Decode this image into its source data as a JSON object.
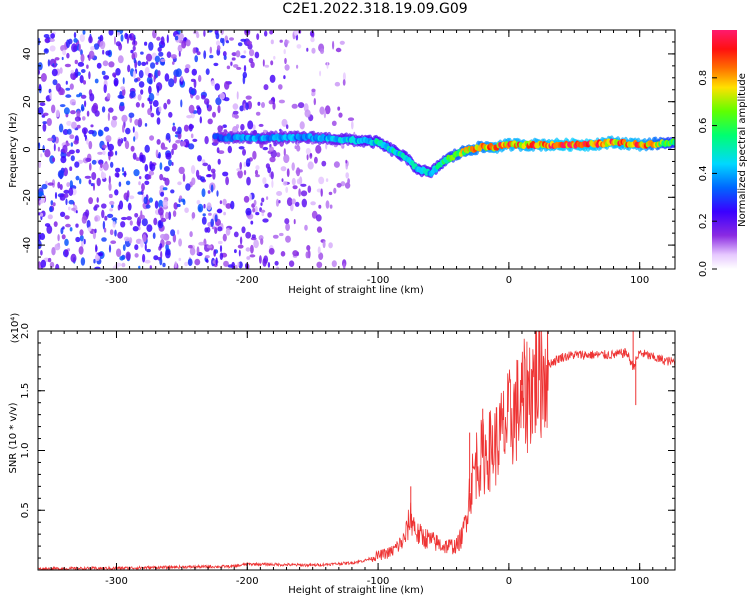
{
  "title": "C2E1.2022.318.19.09.G09",
  "colors": {
    "axis": "#000000",
    "snr_line": "#ee3333",
    "ridge_low": "#7a1cff",
    "ridge_high": "#ff2020",
    "scatter": "#8a2be2"
  },
  "chart_data": [
    {
      "type": "heatmap",
      "title": "",
      "xlabel": "Height of straight line (km)",
      "ylabel": "Frequency (Hz)",
      "xlim": [
        -360,
        127
      ],
      "ylim": [
        -50,
        50
      ],
      "xticks": [
        -300,
        -200,
        -100,
        0,
        100
      ],
      "yticks": [
        -40,
        -20,
        0,
        20,
        40
      ],
      "colorbar": {
        "label": "Normalized spectral amplitude",
        "range": [
          0.0,
          1.0
        ],
        "ticks": [
          "0.0",
          "0.2",
          "0.4",
          "0.6",
          "0.8"
        ],
        "colormap": "rainbow (white-purple-blue-cyan-green-yellow-red-magenta)"
      },
      "ridge": {
        "x": [
          -360,
          -300,
          -250,
          -220,
          -200,
          -150,
          -120,
          -100,
          -90,
          -80,
          -70,
          -60,
          -50,
          -40,
          -30,
          -20,
          -10,
          0,
          20,
          40,
          60,
          80,
          100,
          127
        ],
        "frequency": [
          5,
          5,
          5,
          5,
          5,
          5,
          4,
          3,
          0,
          -3,
          -8,
          -10,
          -5,
          -2,
          0,
          1,
          1,
          2,
          2,
          2,
          2,
          3,
          2,
          3
        ],
        "amplitude": [
          0.0,
          0.0,
          0.0,
          0.35,
          0.4,
          0.4,
          0.45,
          0.5,
          0.5,
          0.5,
          0.5,
          0.45,
          0.6,
          0.7,
          0.8,
          0.8,
          0.9,
          0.9,
          0.9,
          0.95,
          0.95,
          0.9,
          0.9,
          0.6
        ]
      },
      "noise_region": {
        "x_range": [
          -360,
          -110
        ],
        "frequency_range": [
          -50,
          50
        ],
        "amplitude_range": [
          0.05,
          0.25
        ]
      }
    },
    {
      "type": "line",
      "title": "",
      "xlabel": "Height of straight line (km)",
      "ylabel": "SNR (10 * v/v)",
      "y_multiplier": "(x10⁴)",
      "xlim": [
        -360,
        127
      ],
      "ylim": [
        0.0,
        2.0
      ],
      "xticks": [
        -300,
        -200,
        -100,
        0,
        100
      ],
      "yticks": [
        0.5,
        1.0,
        1.5,
        2.0
      ],
      "series": [
        {
          "x": [
            -360,
            -300,
            -250,
            -210,
            -200,
            -150,
            -120,
            -110,
            -100,
            -90,
            -80,
            -75,
            -70,
            -60,
            -50,
            -40,
            -35,
            -30,
            -25,
            -20,
            -10,
            0,
            10,
            20,
            30,
            40,
            50,
            60,
            70,
            80,
            90,
            95,
            100,
            110,
            120,
            127
          ],
          "values": [
            0.01,
            0.015,
            0.025,
            0.03,
            0.05,
            0.04,
            0.06,
            0.08,
            0.12,
            0.15,
            0.25,
            0.45,
            0.3,
            0.25,
            0.2,
            0.2,
            0.3,
            0.65,
            0.9,
            0.95,
            1.05,
            1.25,
            1.4,
            1.6,
            1.72,
            1.78,
            1.8,
            1.8,
            1.8,
            1.8,
            1.82,
            1.7,
            1.82,
            1.78,
            1.75,
            1.74
          ],
          "spikes": [
            {
              "x": -75,
              "value": 0.7
            },
            {
              "x": -30,
              "value": 1.15
            },
            {
              "x": -20,
              "value": 1.35
            },
            {
              "x": 10,
              "value": 1.5
            },
            {
              "x": 95,
              "value": 2.0
            },
            {
              "x": 97,
              "value": 1.38
            }
          ]
        }
      ]
    }
  ]
}
